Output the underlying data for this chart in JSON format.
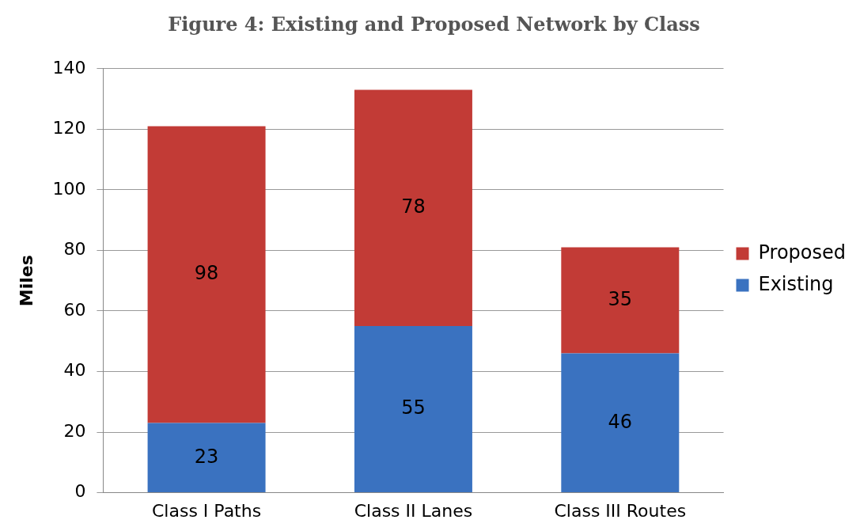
{
  "chart_data": {
    "type": "bar",
    "title": "Figure 4: Existing and Proposed Network by Class",
    "ylabel": "Miles",
    "categories": [
      "Class I Paths",
      "Class II Lanes",
      "Class III Routes"
    ],
    "series": [
      {
        "name": "Existing",
        "color": "#3a72c0",
        "values": [
          23,
          55,
          46
        ]
      },
      {
        "name": "Proposed",
        "color": "#c23b36",
        "values": [
          98,
          78,
          35
        ]
      }
    ],
    "stacked": true,
    "ylim": [
      0,
      140
    ],
    "yticks": [
      0,
      20,
      40,
      60,
      80,
      100,
      120,
      140
    ],
    "grid": "y",
    "legend": "right",
    "data_labels": true
  }
}
